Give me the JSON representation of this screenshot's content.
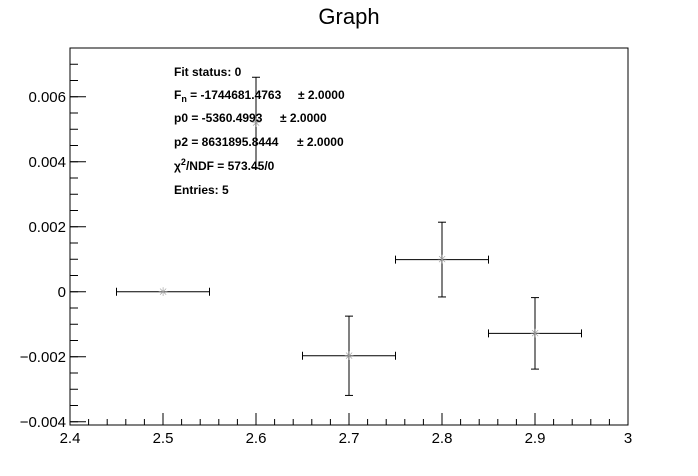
{
  "chart_data": {
    "type": "scatter",
    "title": "Graph",
    "xlabel": "",
    "ylabel": "",
    "xlim": [
      2.4,
      3.0
    ],
    "ylim": [
      -0.0041,
      0.0075
    ],
    "x_ticks": [
      2.4,
      2.5,
      2.6,
      2.7,
      2.8,
      2.9,
      3.0
    ],
    "x_tick_labels": [
      "2.4",
      "2.5",
      "2.6",
      "2.7",
      "2.8",
      "2.9",
      "3"
    ],
    "y_ticks": [
      -0.004,
      -0.002,
      0,
      0.002,
      0.004,
      0.006
    ],
    "y_tick_labels": [
      "−0.004",
      "−0.002",
      "0",
      "0.002",
      "0.004",
      "0.006"
    ],
    "grid": false,
    "points": [
      {
        "x": 2.5,
        "y": 0.0,
        "ex": 0.05,
        "ey": 0.0
      },
      {
        "x": 2.6,
        "y": 0.0052,
        "ex": 0.0,
        "ey": 0.0014
      },
      {
        "x": 2.7,
        "y": -0.00197,
        "ex": 0.05,
        "ey": 0.00122
      },
      {
        "x": 2.8,
        "y": 0.00099,
        "ex": 0.05,
        "ey": 0.00115
      },
      {
        "x": 2.9,
        "y": -0.00128,
        "ex": 0.05,
        "ey": 0.0011
      }
    ],
    "stats_box": {
      "fit_status": "Fit status: 0",
      "fn_label": "F",
      "fn_sub": "n",
      "fn_value": " = -1744681.4763",
      "fn_err": "± 2.0000",
      "p0_value": "p0 = -5360.4993",
      "p0_err": "± 2.0000",
      "p2_value": "p2 = 8631895.8444",
      "p2_err": "± 2.0000",
      "chi_prefix": "χ",
      "chi_sup": "2",
      "chi_rest": "/NDF = 573.45/0",
      "entries": "Entries: 5"
    }
  }
}
